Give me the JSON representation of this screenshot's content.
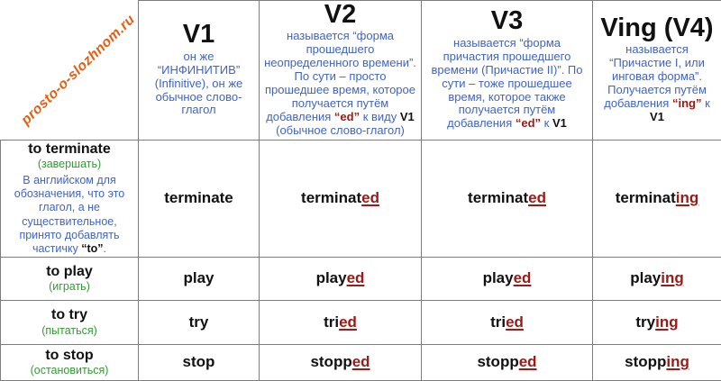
{
  "watermark": {
    "text": "prosto-o-slozhnom.ru"
  },
  "colors": {
    "description_blue": "#3E63CE",
    "translation_green": "#2E9E2E",
    "ending_dark_red": "#A01915",
    "watermark_orange": "#E85C10",
    "grid_gray": "#7d7d7d"
  },
  "columns": [
    {
      "title": "V1",
      "desc": [
        {
          "t": "он же “ИНФИНИТИВ” (Infinitive), он же обычное слово-глагол",
          "c": "blue"
        }
      ]
    },
    {
      "title": "V2",
      "desc": [
        {
          "t": "называется “форма прошедшего неопределенного времени”. По сути – просто прошедшее время, которое получается путём добавления ",
          "c": "blue"
        },
        {
          "t": "“ed”",
          "c": "red"
        },
        {
          "t": " к виду ",
          "c": "blue"
        },
        {
          "t": "V1",
          "c": "black"
        },
        {
          "t": " (обычное слово-глагол)",
          "c": "blue"
        }
      ]
    },
    {
      "title": "V3",
      "desc": [
        {
          "t": "называется “форма причастия прошедшего времени (Причастие II)”. По сути – тоже прошедшее время, которое также получается путём добавления ",
          "c": "blue"
        },
        {
          "t": "“ed”",
          "c": "red"
        },
        {
          "t": " к ",
          "c": "blue"
        },
        {
          "t": "V1",
          "c": "black"
        }
      ]
    },
    {
      "title": "Ving (V4)",
      "desc": [
        {
          "t": "называется “Причастие I, или инговая форма”. Получается путём добавления ",
          "c": "blue"
        },
        {
          "t": "“ing”",
          "c": "red"
        },
        {
          "t": " к ",
          "c": "blue"
        },
        {
          "t": "V1",
          "c": "black"
        }
      ]
    }
  ],
  "rows": [
    {
      "verb": "to terminate",
      "translation": "(завершать)",
      "note": [
        {
          "t": "В английском для обозначения, что это глагол, а не существительное, принято добавлять частичку ",
          "c": "blue"
        },
        {
          "t": "“to”",
          "c": "black"
        },
        {
          "t": ".",
          "c": "blue"
        }
      ],
      "forms": [
        {
          "base": "terminate",
          "ending": ""
        },
        {
          "base": "terminat",
          "ending": "ed"
        },
        {
          "base": "terminat",
          "ending": "ed"
        },
        {
          "base": "terminat",
          "ending": "ing"
        }
      ]
    },
    {
      "verb": "to play",
      "translation": "(играть)",
      "forms": [
        {
          "base": "play",
          "ending": ""
        },
        {
          "base": "play",
          "ending": "ed"
        },
        {
          "base": "play",
          "ending": "ed"
        },
        {
          "base": "play",
          "ending": "ing"
        }
      ]
    },
    {
      "verb": "to try",
      "translation": "(пытаться)",
      "forms": [
        {
          "base": "try",
          "ending": ""
        },
        {
          "base": "tri",
          "ending": "ed"
        },
        {
          "base": "tri",
          "ending": "ed"
        },
        {
          "base": "try",
          "ending": "ing"
        }
      ]
    },
    {
      "verb": "to stop",
      "translation": "(остановиться)",
      "forms": [
        {
          "base": "stop",
          "ending": ""
        },
        {
          "base": "stopp",
          "ending": "ed"
        },
        {
          "base": "stopp",
          "ending": "ed"
        },
        {
          "base": "stopp",
          "ending": "ing"
        }
      ]
    }
  ]
}
